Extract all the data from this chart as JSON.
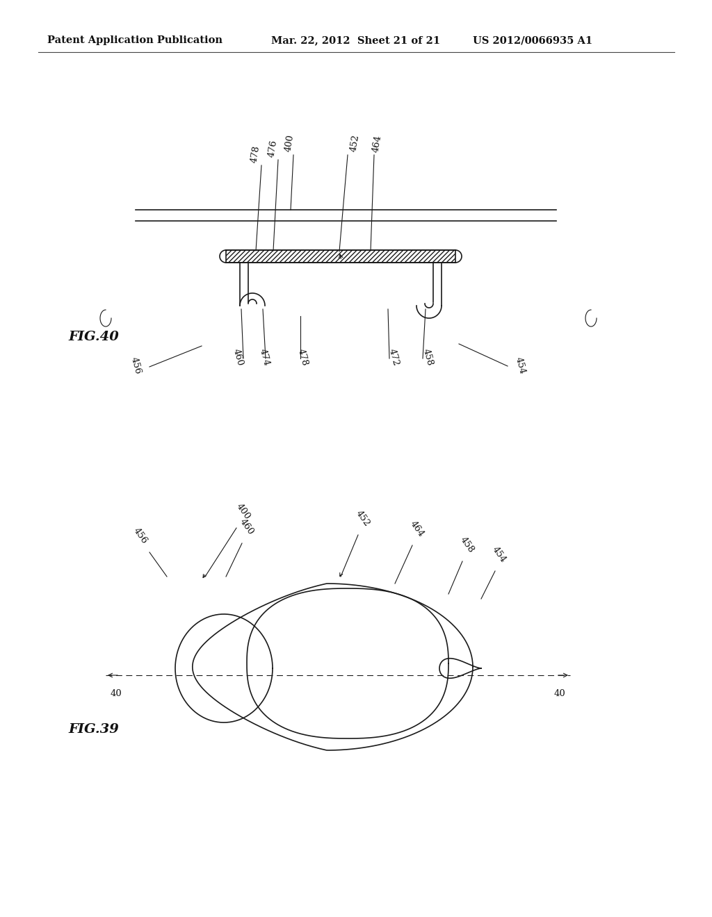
{
  "bg_color": "#ffffff",
  "header_left": "Patent Application Publication",
  "header_mid": "Mar. 22, 2012  Sheet 21 of 21",
  "header_right": "US 2012/0066935 A1",
  "fig39_label": "FIG.39",
  "fig40_label": "FIG.40",
  "header_fontsize": 10.5,
  "label_fontsize": 14
}
